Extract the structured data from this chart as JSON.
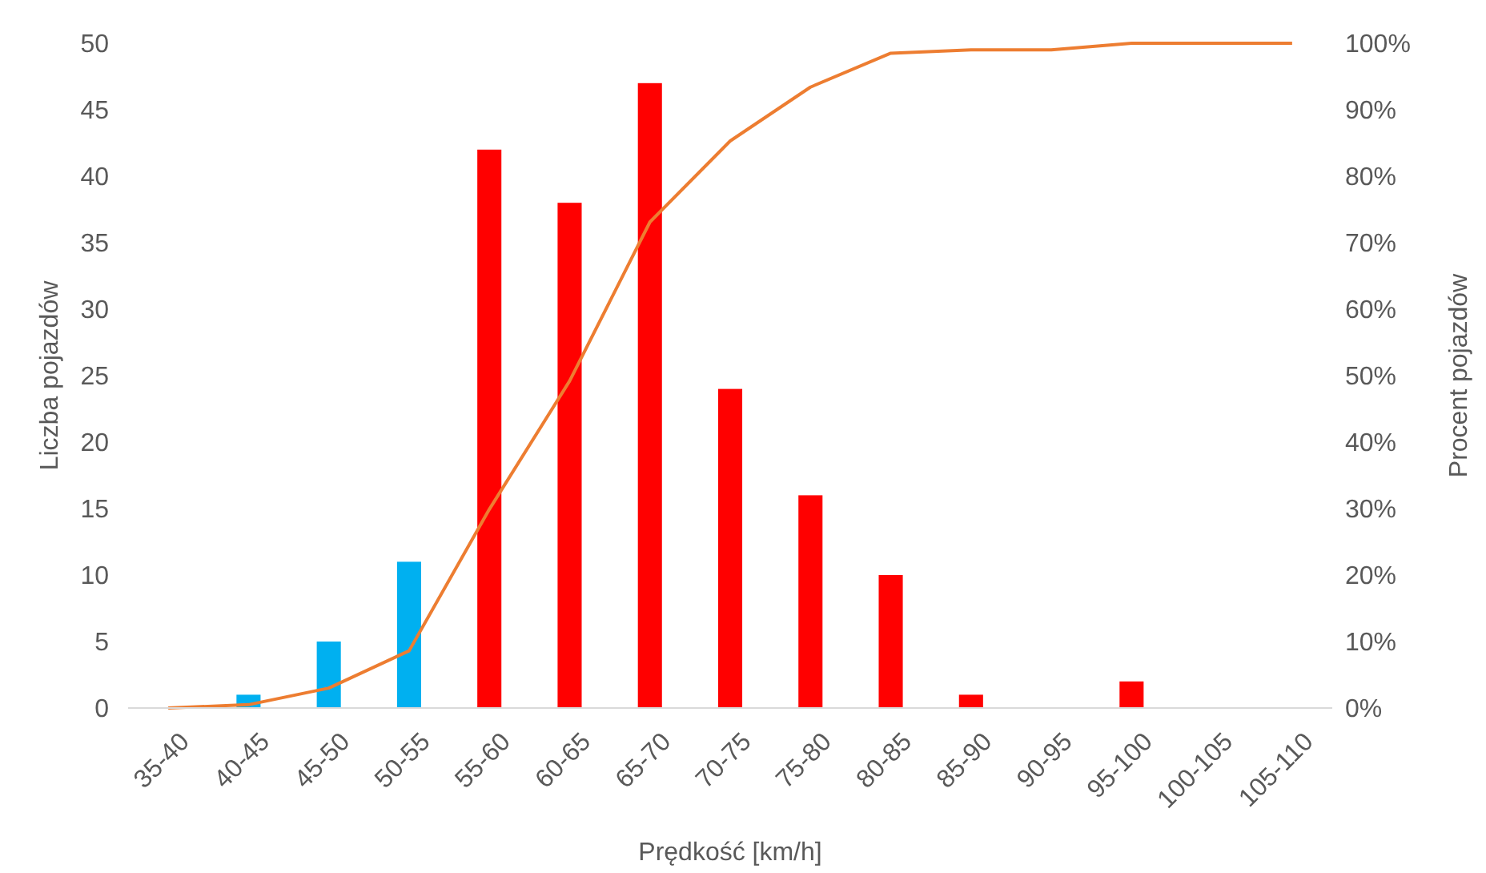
{
  "chart_data": {
    "type": "bar",
    "xlabel": "Prędkość [km/h]",
    "ylabel": "Liczba pojazdów",
    "y2label": "Procent pojazdów",
    "categories": [
      "35-40",
      "40-45",
      "45-50",
      "50-55",
      "55-60",
      "60-65",
      "65-70",
      "70-75",
      "75-80",
      "80-85",
      "85-90",
      "90-95",
      "95-100",
      "100-105",
      "105-110"
    ],
    "series": [
      {
        "colors": [
          "#00b0f0",
          "#00b0f0",
          "#00b0f0",
          "#00b0f0",
          "#ff0000",
          "#ff0000",
          "#ff0000",
          "#ff0000",
          "#ff0000",
          "#ff0000",
          "#ff0000",
          "#ff0000",
          "#ff0000",
          "#ff0000",
          "#ff0000"
        ],
        "values": [
          0,
          1,
          5,
          11,
          42,
          38,
          47,
          24,
          16,
          10,
          1,
          0,
          2,
          0,
          0
        ]
      },
      {
        "type": "line",
        "axis": "y2",
        "color": "#ed7d31",
        "values": [
          0,
          0.5,
          3.0,
          8.6,
          29.9,
          49.2,
          73.1,
          85.3,
          93.4,
          98.5,
          99.0,
          99.0,
          100,
          100,
          100
        ]
      }
    ],
    "ylim": [
      0,
      50
    ],
    "yticks": [
      0,
      5,
      10,
      15,
      20,
      25,
      30,
      35,
      40,
      45,
      50
    ],
    "y2lim": [
      0,
      100
    ],
    "y2ticks": [
      {
        "value": 0,
        "label": "0%"
      },
      {
        "value": 10,
        "label": "10%"
      },
      {
        "value": 20,
        "label": "20%"
      },
      {
        "value": 30,
        "label": "30%"
      },
      {
        "value": 40,
        "label": "40%"
      },
      {
        "value": 50,
        "label": "50%"
      },
      {
        "value": 60,
        "label": "60%"
      },
      {
        "value": 70,
        "label": "70%"
      },
      {
        "value": 80,
        "label": "80%"
      },
      {
        "value": 90,
        "label": "90%"
      },
      {
        "value": 100,
        "label": "100%"
      }
    ],
    "grid": false,
    "marker": "none",
    "line_style": "solid"
  }
}
